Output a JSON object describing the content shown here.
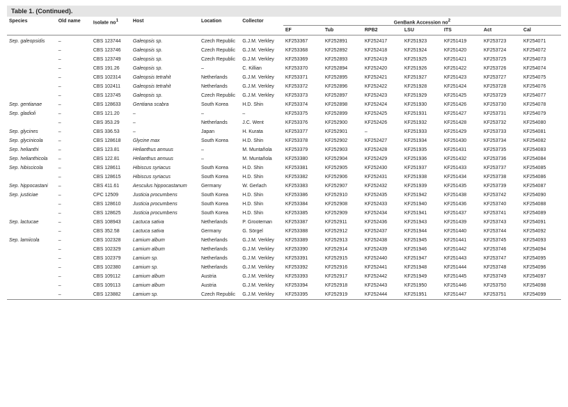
{
  "title": "Table 1. (Continued).",
  "header1": {
    "species": "Species",
    "oldname": "Old name",
    "isolate": "Isolate no",
    "isolate_sup": "1",
    "host": "Host",
    "location": "Location",
    "collector": "Collector",
    "genbank": "GenBank Accession no",
    "genbank_sup": "2"
  },
  "header2": {
    "ef": "EF",
    "tub": "Tub",
    "rpb2": "RPB2",
    "lsu": "LSU",
    "its": "ITS",
    "act": "Act",
    "cal": "Cal"
  },
  "rows": [
    {
      "sep": true,
      "species": "Sep. galeopsidis",
      "oldname": "–",
      "isolate": "CBS 123744",
      "host": "Galeopsis sp.",
      "location": "Czech Republic",
      "collector": "G.J.M. Verkley",
      "ef": "KF253367",
      "tub": "KF252891",
      "rpb2": "KF252417",
      "lsu": "KF251923",
      "its": "KF251419",
      "act": "KF253723",
      "cal": "KF254071"
    },
    {
      "species": "",
      "oldname": "–",
      "isolate": "CBS 123746",
      "host": "Galeopsis sp.",
      "location": "Czech Republic",
      "collector": "G.J.M. Verkley",
      "ef": "KF253368",
      "tub": "KF252892",
      "rpb2": "KF252418",
      "lsu": "KF251924",
      "its": "KF251420",
      "act": "KF253724",
      "cal": "KF254072"
    },
    {
      "species": "",
      "oldname": "–",
      "isolate": "CBS 123749",
      "host": "Galeopsis sp.",
      "location": "Czech Republic",
      "collector": "G.J.M. Verkley",
      "ef": "KF253369",
      "tub": "KF252893",
      "rpb2": "KF252419",
      "lsu": "KF251925",
      "its": "KF251421",
      "act": "KF253725",
      "cal": "KF254073"
    },
    {
      "species": "",
      "oldname": "–",
      "isolate": "CBS 191.26",
      "host": "Galeopsis sp.",
      "location": "–",
      "collector": "C. Killian",
      "ef": "KF253370",
      "tub": "KF252894",
      "rpb2": "KF252420",
      "lsu": "KF251926",
      "its": "KF251422",
      "act": "KF253726",
      "cal": "KF254074"
    },
    {
      "species": "",
      "oldname": "–",
      "isolate": "CBS 102314",
      "host": "Galeopsis tetrahit",
      "location": "Netherlands",
      "collector": "G.J.M. Verkley",
      "ef": "KF253371",
      "tub": "KF252895",
      "rpb2": "KF252421",
      "lsu": "KF251927",
      "its": "KF251423",
      "act": "KF253727",
      "cal": "KF254075"
    },
    {
      "species": "",
      "oldname": "–",
      "isolate": "CBS 102411",
      "host": "Galeopsis tetrahit",
      "location": "Netherlands",
      "collector": "G.J.M. Verkley",
      "ef": "KF253372",
      "tub": "KF252896",
      "rpb2": "KF252422",
      "lsu": "KF251928",
      "its": "KF251424",
      "act": "KF253728",
      "cal": "KF254076"
    },
    {
      "species": "",
      "oldname": "–",
      "isolate": "CBS 123745",
      "host": "Galeopsis sp.",
      "location": "Czech Republic",
      "collector": "G.J.M. Verkley",
      "ef": "KF253373",
      "tub": "KF252897",
      "rpb2": "KF252423",
      "lsu": "KF251929",
      "its": "KF251425",
      "act": "KF253729",
      "cal": "KF254077"
    },
    {
      "species": "Sep. gentianae",
      "oldname": "–",
      "isolate": "CBS 128633",
      "host": "Gentiana scabra",
      "location": "South Korea",
      "collector": "H.D. Shin",
      "ef": "KF253374",
      "tub": "KF252898",
      "rpb2": "KF252424",
      "lsu": "KF251930",
      "its": "KF251426",
      "act": "KF253730",
      "cal": "KF254078"
    },
    {
      "species": "Sep. gladioli",
      "oldname": "–",
      "isolate": "CBS 121.20",
      "host": "–",
      "location": "–",
      "collector": "–",
      "ef": "KF253375",
      "tub": "KF252899",
      "rpb2": "KF252425",
      "lsu": "KF251931",
      "its": "KF251427",
      "act": "KF253731",
      "cal": "KF254079"
    },
    {
      "species": "",
      "oldname": "–",
      "isolate": "CBS 353.29",
      "host": "–",
      "location": "Netherlands",
      "collector": "J.C. Went",
      "ef": "KF253376",
      "tub": "KF252900",
      "rpb2": "KF252426",
      "lsu": "KF251932",
      "its": "KF251428",
      "act": "KF253732",
      "cal": "KF254080"
    },
    {
      "species": "Sep. glycines",
      "oldname": "–",
      "isolate": "CBS 336.53",
      "host": "–",
      "location": "Japan",
      "collector": "H. Kurata",
      "ef": "KF253377",
      "tub": "KF252901",
      "rpb2": "–",
      "lsu": "KF251933",
      "its": "KF251429",
      "act": "KF253733",
      "cal": "KF254081"
    },
    {
      "species": "Sep. glycinicola",
      "oldname": "–",
      "isolate": "CBS 128618",
      "host": "Glycine max",
      "location": "South Korea",
      "collector": "H.D. Shin",
      "ef": "KF253378",
      "tub": "KF252902",
      "rpb2": "KF252427",
      "lsu": "KF251934",
      "its": "KF251430",
      "act": "KF253734",
      "cal": "KF254082"
    },
    {
      "species": "Sep. helianthi",
      "oldname": "–",
      "isolate": "CBS 123.81",
      "host": "Helianthus annuus",
      "location": "–",
      "collector": "M. Muntañola",
      "ef": "KF253379",
      "tub": "KF252903",
      "rpb2": "KF252428",
      "lsu": "KF251935",
      "its": "KF251431",
      "act": "KF253735",
      "cal": "KF254083"
    },
    {
      "species": "Sep. helianthicola",
      "oldname": "–",
      "isolate": "CBS 122.81",
      "host": "Helianthus annuus",
      "location": "–",
      "collector": "M. Muntañola",
      "ef": "KF253380",
      "tub": "KF252904",
      "rpb2": "KF252429",
      "lsu": "KF251936",
      "its": "KF251432",
      "act": "KF253736",
      "cal": "KF254084"
    },
    {
      "species": "Sep. hibiscicola",
      "oldname": "–",
      "isolate": "CBS 128611",
      "host": "Hibiscus syriacus",
      "location": "South Korea",
      "collector": "H.D. Shin",
      "ef": "KF253381",
      "tub": "KF252905",
      "rpb2": "KF252430",
      "lsu": "KF251937",
      "its": "KF251433",
      "act": "KF253737",
      "cal": "KF254085"
    },
    {
      "species": "",
      "oldname": "–",
      "isolate": "CBS 128615",
      "host": "Hibiscus syriacus",
      "location": "South Korea",
      "collector": "H.D. Shin",
      "ef": "KF253382",
      "tub": "KF252906",
      "rpb2": "KF252431",
      "lsu": "KF251938",
      "its": "KF251434",
      "act": "KF253738",
      "cal": "KF254086"
    },
    {
      "species": "Sep. hippocastani",
      "oldname": "–",
      "isolate": "CBS 411.61",
      "host": "Aesculus hippocastanum",
      "location": "Germany",
      "collector": "W. Gerlach",
      "ef": "KF253383",
      "tub": "KF252907",
      "rpb2": "KF252432",
      "lsu": "KF251939",
      "its": "KF251435",
      "act": "KF253739",
      "cal": "KF254087"
    },
    {
      "species": "Sep. justiciae",
      "oldname": "–",
      "isolate": "CPC 12509",
      "host": "Justicia procumbens",
      "location": "South Korea",
      "collector": "H.D. Shin",
      "ef": "KF253386",
      "tub": "KF252910",
      "rpb2": "KF252435",
      "lsu": "KF251942",
      "its": "KF251438",
      "act": "KF253742",
      "cal": "KF254090"
    },
    {
      "species": "",
      "oldname": "–",
      "isolate": "CBS 128610",
      "host": "Justicia procumbens",
      "location": "South Korea",
      "collector": "H.D. Shin",
      "ef": "KF253384",
      "tub": "KF252908",
      "rpb2": "KF252433",
      "lsu": "KF251940",
      "its": "KF251436",
      "act": "KF253740",
      "cal": "KF254088"
    },
    {
      "species": "",
      "oldname": "–",
      "isolate": "CBS 128625",
      "host": "Justicia procumbens",
      "location": "South Korea",
      "collector": "H.D. Shin",
      "ef": "KF253385",
      "tub": "KF252909",
      "rpb2": "KF252434",
      "lsu": "KF251941",
      "its": "KF251437",
      "act": "KF253741",
      "cal": "KF254089"
    },
    {
      "species": "Sep. lactucae",
      "oldname": "–",
      "isolate": "CBS 108943",
      "host": "Lactuca sativa",
      "location": "Netherlands",
      "collector": "P. Grooteman",
      "ef": "KF253387",
      "tub": "KF252911",
      "rpb2": "KF252436",
      "lsu": "KF251943",
      "its": "KF251439",
      "act": "KF253743",
      "cal": "KF254091"
    },
    {
      "species": "",
      "oldname": "–",
      "isolate": "CBS 352.58",
      "host": "Lactuca sativa",
      "location": "Germany",
      "collector": "G. Sörgel",
      "ef": "KF253388",
      "tub": "KF252912",
      "rpb2": "KF252437",
      "lsu": "KF251944",
      "its": "KF251440",
      "act": "KF253744",
      "cal": "KF254092"
    },
    {
      "species": "Sep. lamiicola",
      "oldname": "–",
      "isolate": "CBS 102328",
      "host": "Lamium album",
      "location": "Netherlands",
      "collector": "G.J.M. Verkley",
      "ef": "KF253389",
      "tub": "KF252913",
      "rpb2": "KF252438",
      "lsu": "KF251945",
      "its": "KF251441",
      "act": "KF253745",
      "cal": "KF254093"
    },
    {
      "species": "",
      "oldname": "–",
      "isolate": "CBS 102329",
      "host": "Lamium album",
      "location": "Netherlands",
      "collector": "G.J.M. Verkley",
      "ef": "KF253390",
      "tub": "KF252914",
      "rpb2": "KF252439",
      "lsu": "KF251946",
      "its": "KF251442",
      "act": "KF253746",
      "cal": "KF254094"
    },
    {
      "species": "",
      "oldname": "–",
      "isolate": "CBS 102379",
      "host": "Lamium sp.",
      "location": "Netherlands",
      "collector": "G.J.M. Verkley",
      "ef": "KF253391",
      "tub": "KF252915",
      "rpb2": "KF252440",
      "lsu": "KF251947",
      "its": "KF251443",
      "act": "KF253747",
      "cal": "KF254095"
    },
    {
      "species": "",
      "oldname": "–",
      "isolate": "CBS 102380",
      "host": "Lamium sp.",
      "location": "Netherlands",
      "collector": "G.J.M. Verkley",
      "ef": "KF253392",
      "tub": "KF252916",
      "rpb2": "KF252441",
      "lsu": "KF251948",
      "its": "KF251444",
      "act": "KF253748",
      "cal": "KF254096"
    },
    {
      "species": "",
      "oldname": "–",
      "isolate": "CBS 109112",
      "host": "Lamium album",
      "location": "Austria",
      "collector": "G.J.M. Verkley",
      "ef": "KF253393",
      "tub": "KF252917",
      "rpb2": "KF252442",
      "lsu": "KF251949",
      "its": "KF251445",
      "act": "KF253749",
      "cal": "KF254097"
    },
    {
      "species": "",
      "oldname": "–",
      "isolate": "CBS 109113",
      "host": "Lamium album",
      "location": "Austria",
      "collector": "G.J.M. Verkley",
      "ef": "KF253394",
      "tub": "KF252918",
      "rpb2": "KF252443",
      "lsu": "KF251950",
      "its": "KF251446",
      "act": "KF253750",
      "cal": "KF254098"
    },
    {
      "species": "",
      "oldname": "–",
      "isolate": "CBS 123882",
      "host": "Lamium sp.",
      "location": "Czech Republic",
      "collector": "G.J.M. Verkley",
      "ef": "KF253395",
      "tub": "KF252919",
      "rpb2": "KF252444",
      "lsu": "KF251951",
      "its": "KF251447",
      "act": "KF253751",
      "cal": "KF254099"
    }
  ]
}
